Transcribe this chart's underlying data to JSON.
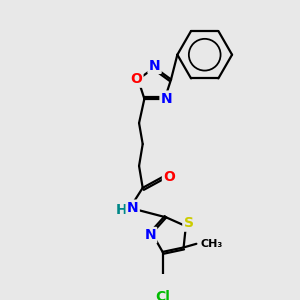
{
  "background_color": "#e8e8e8",
  "bond_color": "#000000",
  "atom_colors": {
    "N": "#0000ff",
    "O": "#ff0000",
    "S": "#cccc00",
    "Cl": "#00bb00",
    "H": "#008888",
    "C": "#000000"
  },
  "font_size_atom": 10,
  "font_size_small": 8.5,
  "lw": 1.6
}
